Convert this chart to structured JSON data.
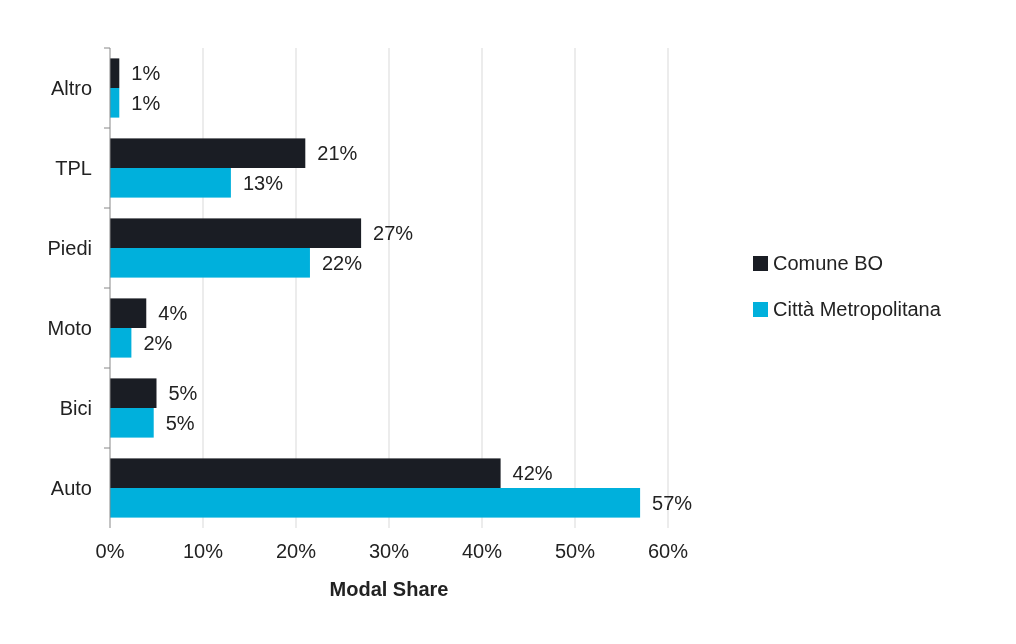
{
  "chart_data": {
    "type": "bar",
    "orientation": "horizontal",
    "xlabel": "Modal Share",
    "categories": [
      "Altro",
      "TPL",
      "Piedi",
      "Moto",
      "Bici",
      "Auto"
    ],
    "series": [
      {
        "name": "Comune BO",
        "color": "#1a1d24",
        "values": [
          1,
          21,
          27,
          3.9,
          5,
          42
        ],
        "value_labels": [
          "1%",
          "21%",
          "27%",
          "4%",
          "5%",
          "42%"
        ]
      },
      {
        "name": "Città Metropolitana",
        "color": "#00b0dc",
        "values": [
          1,
          13,
          21.5,
          2.3,
          4.7,
          57
        ],
        "value_labels": [
          "1%",
          "13%",
          "22%",
          "2%",
          "5%",
          "57%"
        ]
      }
    ],
    "xlim": [
      0,
      60
    ],
    "xticks": [
      {
        "value": 0,
        "label": "0%"
      },
      {
        "value": 10,
        "label": "10%"
      },
      {
        "value": 20,
        "label": "20%"
      },
      {
        "value": 30,
        "label": "30%"
      },
      {
        "value": 40,
        "label": "40%"
      },
      {
        "value": 50,
        "label": "50%"
      },
      {
        "value": 60,
        "label": "60%"
      }
    ],
    "grid": "x",
    "legend": "right"
  }
}
